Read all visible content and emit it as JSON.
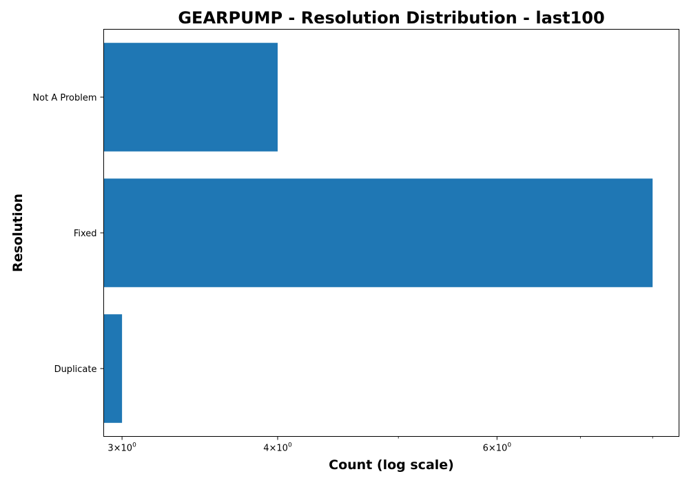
{
  "chart_data": {
    "type": "bar",
    "orientation": "horizontal",
    "title": "GEARPUMP - Resolution Distribution - last100",
    "xlabel": "Count (log scale)",
    "ylabel": "Resolution",
    "categories": [
      "Not A Problem",
      "Fixed",
      "Duplicate"
    ],
    "values": [
      4,
      8,
      3
    ],
    "x_scale": "log",
    "xlim": [
      2.9,
      8.4
    ],
    "x_major_ticks": [
      {
        "value": 3,
        "base": "3",
        "exp": "0"
      },
      {
        "value": 4,
        "base": "4",
        "exp": "0"
      },
      {
        "value": 6,
        "base": "6",
        "exp": "0"
      }
    ],
    "x_minor_ticks": [
      5,
      7,
      8
    ],
    "tick_times": "×10",
    "bar_color": "#1f77b4",
    "grid": false,
    "legend": "none"
  }
}
